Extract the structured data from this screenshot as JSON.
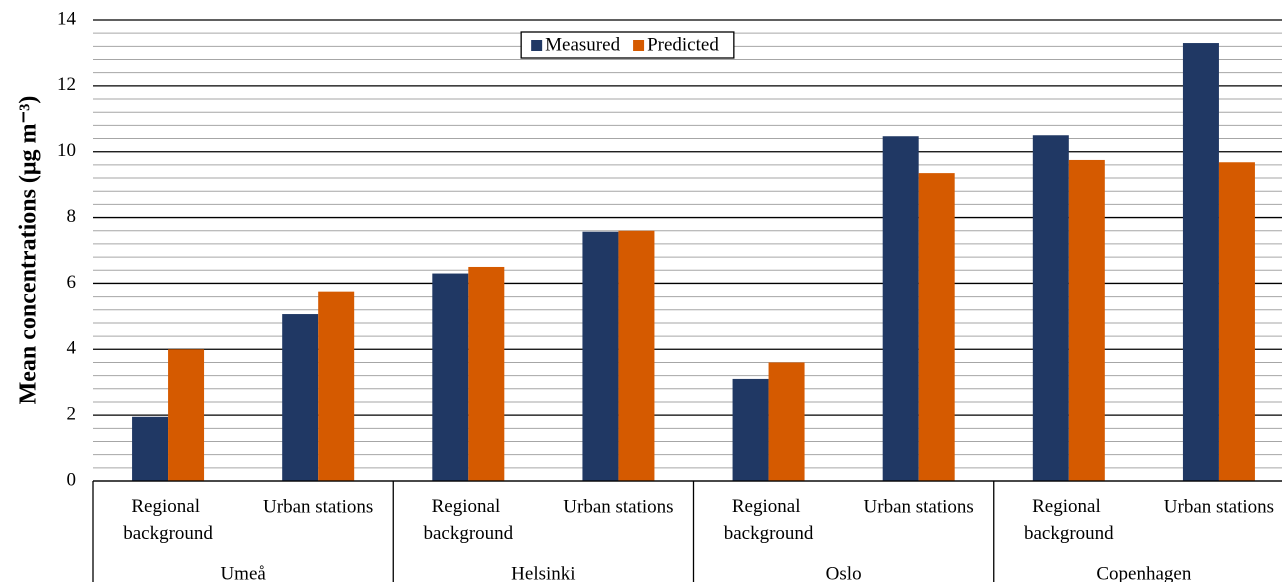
{
  "chart_data": {
    "type": "bar",
    "y_label": "Mean concentrations (μg m⁻³)",
    "groups": [
      {
        "name": "Umeå",
        "categories": [
          "Regional background",
          "Urban stations"
        ]
      },
      {
        "name": "Helsinki",
        "categories": [
          "Regional background",
          "Urban stations"
        ]
      },
      {
        "name": "Oslo",
        "categories": [
          "Regional background",
          "Urban stations"
        ]
      },
      {
        "name": "Copenhagen",
        "categories": [
          "Regional background",
          "Urban stations"
        ]
      }
    ],
    "series": [
      {
        "name": "Measured",
        "color": "#203864",
        "values": [
          1.95,
          5.07,
          6.3,
          7.57,
          3.1,
          10.47,
          10.5,
          13.3
        ]
      },
      {
        "name": "Predicted",
        "color": "#d55a00",
        "values": [
          4.0,
          5.75,
          6.5,
          7.6,
          3.6,
          9.35,
          9.75,
          9.68
        ]
      }
    ],
    "ylim": [
      0,
      14
    ],
    "yticks": [
      0,
      2,
      4,
      6,
      8,
      10,
      12,
      14
    ],
    "grid": {
      "major": true,
      "minor_divisions": 5
    },
    "legend": "top"
  }
}
